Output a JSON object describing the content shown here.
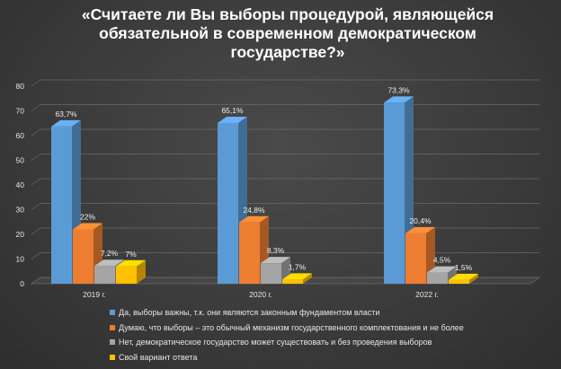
{
  "chart_data": {
    "type": "bar",
    "title": "«Считаете ли Вы выборы процедурой, являющейся обязательной в современном демократическом государстве?»",
    "title_lines": [
      "«Считаете ли Вы выборы процедурой, являющейся",
      "обязательной в современном демократическом",
      "государстве?»"
    ],
    "categories": [
      "2019 г.",
      "2020 г.",
      "2022 г."
    ],
    "ylim": [
      0,
      80
    ],
    "yticks": [
      0,
      10,
      20,
      30,
      40,
      50,
      60,
      70,
      80
    ],
    "grid": true,
    "legend_position": "bottom",
    "series": [
      {
        "name": "Да, выборы важны, т.к. они являются законным фундаментом власти",
        "color": "#5b9bd5",
        "values": [
          63.7,
          65.1,
          73.3
        ],
        "labels": [
          "63,7%",
          "65,1%",
          "73,3%"
        ]
      },
      {
        "name": "Думаю, что выборы – это обычный механизм государственного комплектования и не более",
        "color": "#ed7d31",
        "values": [
          22,
          24.8,
          20.4
        ],
        "labels": [
          "22%",
          "24,8%",
          "20,4%"
        ]
      },
      {
        "name": "Нет, демократическое государство может существовать и без проведения выборов",
        "color": "#a5a5a5",
        "values": [
          7.2,
          8.3,
          4.5
        ],
        "labels": [
          "7,2%",
          "8,3%",
          "4,5%"
        ]
      },
      {
        "name": "Свой вариант ответа",
        "color": "#ffc000",
        "values": [
          7,
          1.7,
          1.5
        ],
        "labels": [
          "7%",
          "1,7%",
          "1,5%"
        ]
      }
    ]
  }
}
